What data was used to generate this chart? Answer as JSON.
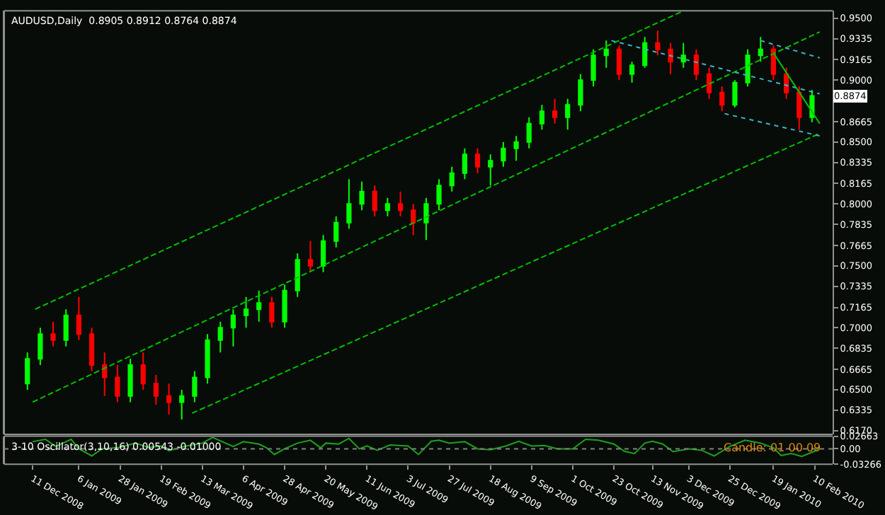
{
  "chart_data": [
    {
      "type": "candlestick",
      "title": "AUDUSD,Daily  0.8905 0.8912 0.8764 0.8874",
      "colors": [
        "#00ff00",
        "#00ff00",
        "#ff0000",
        "#00ff00",
        "#ff0000",
        "#ff0000",
        "#ff0000",
        "#ff0000",
        "#00ff00",
        "#ff0000",
        "#ff0000",
        "#ff0000",
        "#00ff00",
        "#00ff00",
        "#00ff00",
        "#00ff00",
        "#00ff00",
        "#00ff00",
        "#00ff00",
        "#ff0000",
        "#00ff00",
        "#00ff00",
        "#ff0000",
        "#00ff00",
        "#00ff00",
        "#00ff00",
        "#00ff00",
        "#ff0000",
        "#00ff00",
        "#ff0000",
        "#ff0000",
        "#00ff00",
        "#00ff00",
        "#00ff00",
        "#00ff00",
        "#ff0000",
        "#00ff00",
        "#00ff00",
        "#00ff00",
        "#00ff00",
        "#00ff00",
        "#ff0000",
        "#00ff00",
        "#00ff00",
        "#00ff00",
        "#00ff00",
        "#ff0000",
        "#00ff00",
        "#00ff00",
        "#ff0000",
        "#ff0000",
        "#00ff00",
        "#ff0000",
        "#ff0000",
        "#ff0000",
        "#00ff00",
        "#00ff00",
        "#00ff00",
        "#ff0000",
        "#ff0000",
        "#ff0000",
        "#00ff00"
      ],
      "x": [
        "2008-12-08",
        "2008-12-15",
        "2008-12-22",
        "2008-12-29",
        "2009-01-05",
        "2009-01-12",
        "2009-01-19",
        "2009-01-26",
        "2009-02-02",
        "2009-02-09",
        "2009-02-16",
        "2009-02-23",
        "2009-03-02",
        "2009-03-09",
        "2009-03-16",
        "2009-03-23",
        "2009-03-30",
        "2009-04-06",
        "2009-04-13",
        "2009-04-20",
        "2009-04-27",
        "2009-05-04",
        "2009-05-11",
        "2009-05-18",
        "2009-05-25",
        "2009-06-01",
        "2009-06-08",
        "2009-06-15",
        "2009-06-22",
        "2009-06-29",
        "2009-07-06",
        "2009-07-13",
        "2009-07-20",
        "2009-07-27",
        "2009-08-03",
        "2009-08-10",
        "2009-08-17",
        "2009-08-24",
        "2009-08-31",
        "2009-09-07",
        "2009-09-14",
        "2009-09-21",
        "2009-09-28",
        "2009-10-05",
        "2009-10-12",
        "2009-10-19",
        "2009-10-26",
        "2009-11-02",
        "2009-11-09",
        "2009-11-16",
        "2009-11-23",
        "2009-11-30",
        "2009-12-07",
        "2009-12-14",
        "2009-12-21",
        "2009-12-28",
        "2010-01-04",
        "2010-01-11",
        "2010-01-18",
        "2010-01-25",
        "2010-02-01",
        "2010-02-08"
      ],
      "ohlc": [
        [
          0.655,
          0.68,
          0.65,
          0.675
        ],
        [
          0.675,
          0.7,
          0.67,
          0.695
        ],
        [
          0.695,
          0.705,
          0.685,
          0.69
        ],
        [
          0.69,
          0.715,
          0.685,
          0.71
        ],
        [
          0.71,
          0.725,
          0.69,
          0.695
        ],
        [
          0.695,
          0.7,
          0.665,
          0.67
        ],
        [
          0.67,
          0.68,
          0.645,
          0.66
        ],
        [
          0.66,
          0.67,
          0.64,
          0.645
        ],
        [
          0.645,
          0.675,
          0.64,
          0.67
        ],
        [
          0.67,
          0.68,
          0.65,
          0.655
        ],
        [
          0.655,
          0.662,
          0.638,
          0.645
        ],
        [
          0.645,
          0.655,
          0.63,
          0.64
        ],
        [
          0.64,
          0.65,
          0.626,
          0.645
        ],
        [
          0.645,
          0.665,
          0.64,
          0.66
        ],
        [
          0.66,
          0.695,
          0.655,
          0.69
        ],
        [
          0.69,
          0.705,
          0.68,
          0.7
        ],
        [
          0.7,
          0.715,
          0.685,
          0.71
        ],
        [
          0.71,
          0.725,
          0.7,
          0.715
        ],
        [
          0.715,
          0.73,
          0.705,
          0.72
        ],
        [
          0.72,
          0.725,
          0.7,
          0.705
        ],
        [
          0.705,
          0.735,
          0.7,
          0.73
        ],
        [
          0.73,
          0.76,
          0.725,
          0.755
        ],
        [
          0.755,
          0.77,
          0.745,
          0.75
        ],
        [
          0.75,
          0.775,
          0.745,
          0.77
        ],
        [
          0.77,
          0.79,
          0.765,
          0.785
        ],
        [
          0.785,
          0.82,
          0.78,
          0.8
        ],
        [
          0.8,
          0.818,
          0.795,
          0.81
        ],
        [
          0.81,
          0.815,
          0.79,
          0.795
        ],
        [
          0.795,
          0.805,
          0.79,
          0.8
        ],
        [
          0.8,
          0.81,
          0.79,
          0.795
        ],
        [
          0.795,
          0.8,
          0.775,
          0.785
        ],
        [
          0.785,
          0.805,
          0.771,
          0.8
        ],
        [
          0.8,
          0.82,
          0.795,
          0.815
        ],
        [
          0.815,
          0.83,
          0.81,
          0.825
        ],
        [
          0.825,
          0.845,
          0.82,
          0.84
        ],
        [
          0.84,
          0.845,
          0.825,
          0.83
        ],
        [
          0.83,
          0.84,
          0.815,
          0.835
        ],
        [
          0.835,
          0.85,
          0.83,
          0.845
        ],
        [
          0.845,
          0.855,
          0.835,
          0.85
        ],
        [
          0.85,
          0.87,
          0.845,
          0.865
        ],
        [
          0.865,
          0.88,
          0.86,
          0.875
        ],
        [
          0.875,
          0.885,
          0.865,
          0.87
        ],
        [
          0.87,
          0.885,
          0.86,
          0.88
        ],
        [
          0.88,
          0.905,
          0.875,
          0.9
        ],
        [
          0.9,
          0.925,
          0.895,
          0.92
        ],
        [
          0.92,
          0.932,
          0.91,
          0.925
        ],
        [
          0.925,
          0.928,
          0.9,
          0.905
        ],
        [
          0.905,
          0.915,
          0.898,
          0.912
        ],
        [
          0.912,
          0.935,
          0.91,
          0.93
        ],
        [
          0.93,
          0.94,
          0.92,
          0.925
        ],
        [
          0.925,
          0.93,
          0.905,
          0.915
        ],
        [
          0.915,
          0.93,
          0.91,
          0.92
        ],
        [
          0.92,
          0.925,
          0.9,
          0.905
        ],
        [
          0.905,
          0.91,
          0.885,
          0.89
        ],
        [
          0.89,
          0.895,
          0.875,
          0.88
        ],
        [
          0.88,
          0.9,
          0.878,
          0.898
        ],
        [
          0.898,
          0.925,
          0.895,
          0.92
        ],
        [
          0.92,
          0.935,
          0.915,
          0.925
        ],
        [
          0.925,
          0.928,
          0.9,
          0.905
        ],
        [
          0.905,
          0.91,
          0.885,
          0.89
        ],
        [
          0.89,
          0.895,
          0.86,
          0.87
        ],
        [
          0.87,
          0.892,
          0.866,
          0.8874
        ]
      ],
      "series": [
        {
          "type": "line",
          "color": "#00c000",
          "line_style": "dashed",
          "x": [
            "2008-12-12",
            "2009-12-01"
          ],
          "values": [
            0.715,
            0.956
          ]
        },
        {
          "type": "line",
          "color": "#00c000",
          "line_style": "dashed",
          "x": [
            "2008-12-11",
            "2010-02-12"
          ],
          "values": [
            0.64,
            0.939
          ]
        },
        {
          "type": "line",
          "color": "#00c000",
          "line_style": "dashed",
          "x": [
            "2009-03-09",
            "2010-02-12"
          ],
          "values": [
            0.631,
            0.857
          ]
        },
        {
          "type": "line",
          "color": "#3cb4c8",
          "line_style": "dotted",
          "x": [
            "2009-10-22",
            "2010-02-12"
          ],
          "values": [
            0.932,
            0.889
          ]
        },
        {
          "type": "line",
          "color": "#3cb4c8",
          "line_style": "dotted",
          "x": [
            "2010-01-12",
            "2010-02-12"
          ],
          "values": [
            0.932,
            0.918
          ]
        },
        {
          "type": "line",
          "color": "#3cb4c8",
          "line_style": "dotted",
          "x": [
            "2009-12-23",
            "2010-02-12"
          ],
          "values": [
            0.873,
            0.855
          ]
        },
        {
          "type": "line",
          "color": "#00c000",
          "line_style": "solid",
          "x": [
            "2010-01-19",
            "2010-02-12"
          ],
          "values": [
            0.922,
            0.865
          ]
        }
      ],
      "annotations": [
        {
          "text": "0.8874",
          "x": "2010-02-08",
          "y": 0.8874
        }
      ],
      "xlim": [
        "2008-11-26",
        "2010-02-19"
      ],
      "ylim": [
        0.614,
        0.956
      ],
      "yticks": [
        {
          "value": 0.95,
          "label": "0.9500"
        },
        {
          "value": 0.9335,
          "label": "0.9335"
        },
        {
          "value": 0.9165,
          "label": "0.9165"
        },
        {
          "value": 0.9,
          "label": "0.9000"
        },
        {
          "value": 0.8835,
          "label": null
        },
        {
          "value": 0.8665,
          "label": "0.8665"
        },
        {
          "value": 0.85,
          "label": "0.8500"
        },
        {
          "value": 0.8335,
          "label": "0.8335"
        },
        {
          "value": 0.8165,
          "label": "0.8165"
        },
        {
          "value": 0.8,
          "label": "0.8000"
        },
        {
          "value": 0.7835,
          "label": "0.7835"
        },
        {
          "value": 0.7665,
          "label": "0.7665"
        },
        {
          "value": 0.75,
          "label": "0.7500"
        },
        {
          "value": 0.7335,
          "label": "0.7335"
        },
        {
          "value": 0.7165,
          "label": "0.7165"
        },
        {
          "value": 0.7,
          "label": "0.7000"
        },
        {
          "value": 0.6835,
          "label": "0.6835"
        },
        {
          "value": 0.6665,
          "label": "0.6665"
        },
        {
          "value": 0.65,
          "label": "0.6500"
        },
        {
          "value": 0.6335,
          "label": "0.6335"
        },
        {
          "value": 0.617,
          "label": "0.6170"
        }
      ],
      "tick_labels": "y",
      "grid": false,
      "legend": false
    },
    {
      "type": "line",
      "title": "3-10 Oscillator(3,10,16) 0.00543 -0.01000",
      "x": [
        "2008-12-11",
        "2008-12-18",
        "2008-12-24",
        "2009-01-01",
        "2009-01-06",
        "2009-01-13",
        "2009-01-19",
        "2009-01-28",
        "2009-02-05",
        "2009-02-12",
        "2009-02-19",
        "2009-02-24",
        "2009-03-04",
        "2009-03-13",
        "2009-03-19",
        "2009-03-26",
        "2009-03-31",
        "2009-04-06",
        "2009-04-14",
        "2009-04-17",
        "2009-04-22",
        "2009-04-28",
        "2009-05-05",
        "2009-05-12",
        "2009-05-18",
        "2009-05-20",
        "2009-05-27",
        "2009-06-02",
        "2009-06-08",
        "2009-06-11",
        "2009-06-17",
        "2009-06-24",
        "2009-07-03",
        "2009-07-09",
        "2009-07-16",
        "2009-07-21",
        "2009-07-27",
        "2009-08-04",
        "2009-08-11",
        "2009-08-18",
        "2009-08-26",
        "2009-09-02",
        "2009-09-09",
        "2009-09-16",
        "2009-09-23",
        "2009-10-01",
        "2009-10-08",
        "2009-10-15",
        "2009-10-23",
        "2009-10-29",
        "2009-11-04",
        "2009-11-10",
        "2009-11-13",
        "2009-11-19",
        "2009-11-25",
        "2009-12-03",
        "2009-12-10",
        "2009-12-17",
        "2009-12-25",
        "2010-01-04",
        "2010-01-12",
        "2010-01-19",
        "2010-01-22",
        "2010-01-28",
        "2010-02-03",
        "2010-02-10",
        "2010-02-12"
      ],
      "series": [
        {
          "color": "#1ea01e",
          "values": [
            0.015,
            0.02,
            0.005,
            0.02,
            0.0,
            -0.015,
            0.0,
            0.003,
            0.012,
            0.003,
            0.006,
            -0.004,
            0.005,
            0.012,
            0.024,
            0.012,
            0.005,
            0.015,
            0.01,
            0.002,
            -0.012,
            0.0,
            0.012,
            0.018,
            0.002,
            0.012,
            0.01,
            0.022,
            0.0,
            0.006,
            -0.003,
            0.008,
            0.006,
            -0.012,
            0.016,
            0.018,
            0.012,
            0.015,
            0.0,
            -0.002,
            0.006,
            0.016,
            0.006,
            0.007,
            0.0,
            0.0,
            0.02,
            0.018,
            0.01,
            -0.005,
            -0.01,
            0.012,
            0.016,
            0.01,
            -0.006,
            0.0,
            -0.003,
            -0.015,
            0.005,
            0.018,
            0.012,
            0.002,
            -0.014,
            -0.01,
            -0.016,
            -0.005,
            0.005
          ]
        }
      ],
      "ref_lines": [
        {
          "axis": "y",
          "value": 0,
          "color": "#808080",
          "line_style": "dotted"
        }
      ],
      "annotations": [
        "Candle: 01 00 09"
      ],
      "xlim": [
        "2008-11-26",
        "2010-02-19"
      ],
      "xticks": [
        {
          "value": "2008-12-11",
          "label": "11 Dec 2008"
        },
        {
          "value": "2009-01-06",
          "label": "6 Jan 2009"
        },
        {
          "value": "2009-01-28",
          "label": "28 Jan 2009"
        },
        {
          "value": "2009-02-19",
          "label": "19 Feb 2009"
        },
        {
          "value": "2009-03-13",
          "label": "13 Mar 2009"
        },
        {
          "value": "2009-04-06",
          "label": "6 Apr 2009"
        },
        {
          "value": "2009-04-28",
          "label": "28 Apr 2009"
        },
        {
          "value": "2009-05-20",
          "label": "20 May 2009"
        },
        {
          "value": "2009-06-11",
          "label": "11 Jun 2009"
        },
        {
          "value": "2009-07-03",
          "label": "3 Jul 2009"
        },
        {
          "value": "2009-07-27",
          "label": "27 Jul 2009"
        },
        {
          "value": "2009-08-18",
          "label": "18 Aug 2009"
        },
        {
          "value": "2009-09-09",
          "label": "9 Sep 2009"
        },
        {
          "value": "2009-10-01",
          "label": "1 Oct 2009"
        },
        {
          "value": "2009-10-23",
          "label": "23 Oct 2009"
        },
        {
          "value": "2009-11-13",
          "label": "13 Nov 2009"
        },
        {
          "value": "2009-12-03",
          "label": "3 Dec 2009"
        },
        {
          "value": "2009-12-25",
          "label": "25 Dec 2009"
        },
        {
          "value": "2010-01-19",
          "label": "19 Jan 2010"
        },
        {
          "value": "2010-02-10",
          "label": "10 Feb 2010"
        }
      ],
      "ylim": [
        -0.03266,
        0.02663
      ],
      "yticks": [
        0.02663,
        {
          "value": 0,
          "label": "0.00"
        },
        -0.03266
      ],
      "grid": false,
      "legend": false
    }
  ]
}
